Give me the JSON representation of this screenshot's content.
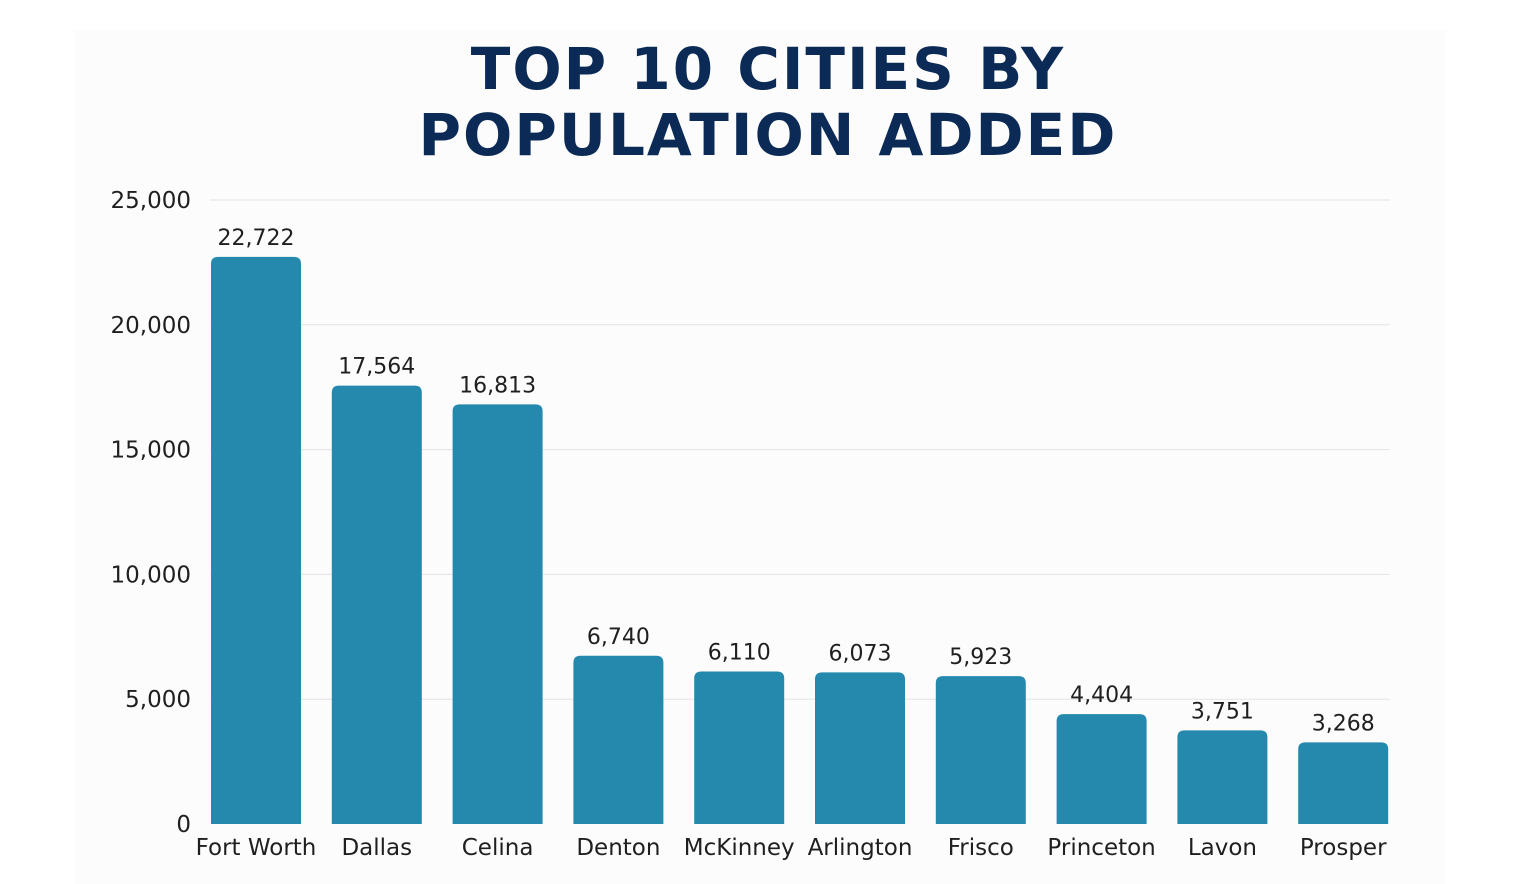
{
  "chart_data": {
    "type": "bar",
    "title_lines": [
      "TOP 10 CITIES BY",
      "POPULATION ADDED"
    ],
    "categories": [
      "Fort Worth",
      "Dallas",
      "Celina",
      "Denton",
      "McKinney",
      "Arlington",
      "Frisco",
      "Princeton",
      "Lavon",
      "Prosper"
    ],
    "values": [
      22722,
      17564,
      16813,
      6740,
      6110,
      6073,
      5923,
      4404,
      3751,
      3268
    ],
    "data_labels": [
      "22,722",
      "17,564",
      "16,813",
      "6,740",
      "6,110",
      "6,073",
      "5,923",
      "4,404",
      "3,751",
      "3,268"
    ],
    "ylim": [
      0,
      25000
    ],
    "yticks": [
      0,
      5000,
      10000,
      15000,
      20000,
      25000
    ],
    "ytick_labels": [
      "0",
      "5,000",
      "10,000",
      "15,000",
      "20,000",
      "25,000"
    ],
    "xlabel": "",
    "ylabel": "",
    "grid": true,
    "legend": "none",
    "colors": {
      "bar": "#2589ae",
      "title": "#0b2a55",
      "grid": "#e4e4e4",
      "text": "#1f1f1f"
    }
  }
}
